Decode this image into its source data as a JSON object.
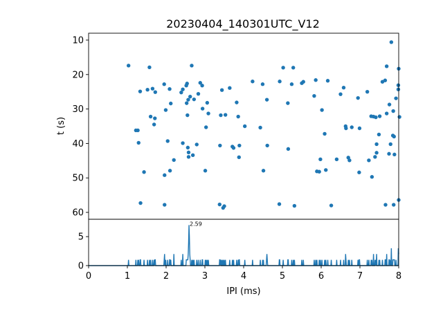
{
  "colors": {
    "series": "#1f77b4",
    "axis": "#000000",
    "background": "#ffffff"
  },
  "chart_data": [
    {
      "type": "scatter",
      "title": "20230404_140301UTC_V12",
      "xlabel": "",
      "ylabel": "t (s)",
      "xlim": [
        0,
        8
      ],
      "ylim": [
        62,
        8
      ],
      "y_inverted": true,
      "yticks": [
        10,
        20,
        30,
        40,
        50,
        60
      ],
      "ytick_labels": [
        "10",
        "20",
        "30",
        "40",
        "50",
        "60"
      ],
      "grid": false,
      "points": [
        [
          1.03,
          17.4
        ],
        [
          1.22,
          36.2
        ],
        [
          1.27,
          36.2
        ],
        [
          1.29,
          39.8
        ],
        [
          1.33,
          24.9
        ],
        [
          1.34,
          57.3
        ],
        [
          1.43,
          48.3
        ],
        [
          1.52,
          24.4
        ],
        [
          1.57,
          17.9
        ],
        [
          1.6,
          32.2
        ],
        [
          1.65,
          24.1
        ],
        [
          1.69,
          34.5
        ],
        [
          1.71,
          32.7
        ],
        [
          1.72,
          25.1
        ],
        [
          1.95,
          22.8
        ],
        [
          1.96,
          49.2
        ],
        [
          1.96,
          57.8
        ],
        [
          1.99,
          30.3
        ],
        [
          2.04,
          39.3
        ],
        [
          2.09,
          24.2
        ],
        [
          2.1,
          47.9
        ],
        [
          2.12,
          28.4
        ],
        [
          2.2,
          44.8
        ],
        [
          2.39,
          25.2
        ],
        [
          2.43,
          24.3
        ],
        [
          2.43,
          39.9
        ],
        [
          2.52,
          23.2
        ],
        [
          2.53,
          28.3
        ],
        [
          2.54,
          22.6
        ],
        [
          2.55,
          31.8
        ],
        [
          2.56,
          41.2
        ],
        [
          2.57,
          27.3
        ],
        [
          2.58,
          42.6
        ],
        [
          2.58,
          43.9
        ],
        [
          2.62,
          26.4
        ],
        [
          2.66,
          17.4
        ],
        [
          2.69,
          43.4
        ],
        [
          2.72,
          27.2
        ],
        [
          2.79,
          40.3
        ],
        [
          2.83,
          25.6
        ],
        [
          2.88,
          22.4
        ],
        [
          2.93,
          23.2
        ],
        [
          2.94,
          29.9
        ],
        [
          3.01,
          47.9
        ],
        [
          3.03,
          35.3
        ],
        [
          3.06,
          28.2
        ],
        [
          3.09,
          31.3
        ],
        [
          3.38,
          57.7
        ],
        [
          3.39,
          40.6
        ],
        [
          3.41,
          31.8
        ],
        [
          3.44,
          24.5
        ],
        [
          3.47,
          58.7
        ],
        [
          3.5,
          58.2
        ],
        [
          3.53,
          31.7
        ],
        [
          3.64,
          23.9
        ],
        [
          3.71,
          40.9
        ],
        [
          3.74,
          41.3
        ],
        [
          3.82,
          28.1
        ],
        [
          3.86,
          32.2
        ],
        [
          3.88,
          44.0
        ],
        [
          3.89,
          40.6
        ],
        [
          4.03,
          35.0
        ],
        [
          4.23,
          22.0
        ],
        [
          4.43,
          35.4
        ],
        [
          4.49,
          22.8
        ],
        [
          4.51,
          47.9
        ],
        [
          4.6,
          27.3
        ],
        [
          4.61,
          40.6
        ],
        [
          4.92,
          57.6
        ],
        [
          4.93,
          22.0
        ],
        [
          5.02,
          18.0
        ],
        [
          5.14,
          28.3
        ],
        [
          5.15,
          41.6
        ],
        [
          5.24,
          22.8
        ],
        [
          5.28,
          18.0
        ],
        [
          5.31,
          58.1
        ],
        [
          5.5,
          22.5
        ],
        [
          5.54,
          22.1
        ],
        [
          5.82,
          26.2
        ],
        [
          5.86,
          21.6
        ],
        [
          5.89,
          48.1
        ],
        [
          5.95,
          48.2
        ],
        [
          5.98,
          44.6
        ],
        [
          6.02,
          30.3
        ],
        [
          6.09,
          37.2
        ],
        [
          6.12,
          47.7
        ],
        [
          6.17,
          21.8
        ],
        [
          6.26,
          58.0
        ],
        [
          6.4,
          44.6
        ],
        [
          6.5,
          25.7
        ],
        [
          6.58,
          23.8
        ],
        [
          6.63,
          35.0
        ],
        [
          6.64,
          35.6
        ],
        [
          6.7,
          44.1
        ],
        [
          6.73,
          44.9
        ],
        [
          6.79,
          35.3
        ],
        [
          6.95,
          26.8
        ],
        [
          6.98,
          48.4
        ],
        [
          6.99,
          35.6
        ],
        [
          7.19,
          25.0
        ],
        [
          7.23,
          44.9
        ],
        [
          7.29,
          32.1
        ],
        [
          7.31,
          49.7
        ],
        [
          7.35,
          32.2
        ],
        [
          7.39,
          43.9
        ],
        [
          7.41,
          32.4
        ],
        [
          7.43,
          42.7
        ],
        [
          7.43,
          40.2
        ],
        [
          7.49,
          37.4
        ],
        [
          7.51,
          32.1
        ],
        [
          7.58,
          22.1
        ],
        [
          7.65,
          21.7
        ],
        [
          7.66,
          57.8
        ],
        [
          7.69,
          17.6
        ],
        [
          7.69,
          31.3
        ],
        [
          7.75,
          43.0
        ],
        [
          7.76,
          28.7
        ],
        [
          7.79,
          40.2
        ],
        [
          7.81,
          10.6
        ],
        [
          7.85,
          37.7
        ],
        [
          7.86,
          30.6
        ],
        [
          7.87,
          57.8
        ],
        [
          7.88,
          38.0
        ],
        [
          7.89,
          43.2
        ],
        [
          7.93,
          26.9
        ],
        [
          7.99,
          23.1
        ],
        [
          7.99,
          24.3
        ],
        [
          8.0,
          18.3
        ],
        [
          8.0,
          56.4
        ],
        [
          8.02,
          32.3
        ]
      ]
    },
    {
      "type": "area",
      "title": "",
      "xlabel": "IPI (ms)",
      "ylabel": "",
      "xlim": [
        0,
        8
      ],
      "ylim": [
        0,
        8
      ],
      "yticks": [
        0,
        5
      ],
      "ytick_labels": [
        "0",
        "5"
      ],
      "xticks": [
        0,
        1,
        2,
        3,
        4,
        5,
        6,
        7,
        8
      ],
      "xtick_labels": [
        "0",
        "1",
        "2",
        "3",
        "4",
        "5",
        "6",
        "7",
        "8"
      ],
      "grid": false,
      "peak_annotation": {
        "x": 2.59,
        "y": 7,
        "text": "2.59"
      },
      "bin_width": 0.01,
      "counts": {
        "1.03": 1,
        "1.22": 1,
        "1.27": 1,
        "1.29": 1,
        "1.33": 1,
        "1.34": 1,
        "1.43": 1,
        "1.52": 1,
        "1.57": 1,
        "1.6": 1,
        "1.65": 1,
        "1.69": 1,
        "1.71": 1,
        "1.72": 1,
        "1.95": 1,
        "1.96": 2,
        "1.99": 1,
        "2.04": 1,
        "2.09": 1,
        "2.1": 1,
        "2.12": 1,
        "2.2": 2,
        "2.39": 1,
        "2.43": 2,
        "2.52": 1,
        "2.53": 1,
        "2.54": 1,
        "2.55": 1,
        "2.56": 1,
        "2.57": 2,
        "2.58": 4,
        "2.59": 7,
        "2.6": 5,
        "2.61": 2,
        "2.62": 1,
        "2.66": 1,
        "2.69": 1,
        "2.72": 1,
        "2.79": 1,
        "2.83": 1,
        "2.88": 1,
        "2.93": 1,
        "2.94": 1,
        "3.01": 1,
        "3.03": 1,
        "3.06": 1,
        "3.09": 1,
        "3.38": 1,
        "3.39": 1,
        "3.41": 1,
        "3.44": 1,
        "3.47": 1,
        "3.5": 1,
        "3.53": 1,
        "3.64": 1,
        "3.71": 1,
        "3.74": 1,
        "3.82": 1,
        "3.86": 1,
        "3.88": 1,
        "3.89": 1,
        "4.03": 1,
        "4.23": 1,
        "4.43": 1,
        "4.49": 1,
        "4.51": 1,
        "4.59": 1,
        "4.6": 2,
        "4.61": 1,
        "4.92": 1,
        "4.93": 1,
        "5.02": 1,
        "5.14": 1,
        "5.15": 1,
        "5.24": 1,
        "5.28": 1,
        "5.31": 1,
        "5.5": 1,
        "5.54": 1,
        "5.82": 1,
        "5.86": 1,
        "5.89": 1,
        "5.95": 1,
        "5.98": 1,
        "6.02": 1,
        "6.09": 1,
        "6.12": 1,
        "6.17": 1,
        "6.26": 1,
        "6.4": 1,
        "6.5": 1,
        "6.58": 1,
        "6.63": 2,
        "6.64": 1,
        "6.7": 1,
        "6.73": 1,
        "6.79": 1,
        "6.95": 1,
        "6.98": 1,
        "6.99": 1,
        "7.19": 1,
        "7.23": 1,
        "7.29": 1,
        "7.31": 1,
        "7.35": 2,
        "7.39": 1,
        "7.41": 1,
        "7.43": 2,
        "7.49": 1,
        "7.51": 1,
        "7.58": 1,
        "7.65": 1,
        "7.66": 1,
        "7.69": 2,
        "7.75": 1,
        "7.76": 1,
        "7.79": 1,
        "7.81": 3,
        "7.85": 1,
        "7.86": 1,
        "7.87": 1,
        "7.88": 1,
        "7.89": 1,
        "7.93": 1,
        "7.99": 3,
        "8.0": 2
      }
    }
  ]
}
